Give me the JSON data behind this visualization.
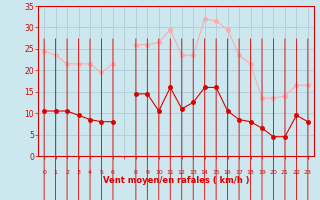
{
  "hours": [
    0,
    1,
    2,
    3,
    4,
    5,
    6,
    7,
    8,
    9,
    10,
    11,
    12,
    13,
    14,
    15,
    16,
    17,
    18,
    19,
    20,
    21,
    22,
    23
  ],
  "wind_mean": [
    10.5,
    10.5,
    10.5,
    9.5,
    8.5,
    8.0,
    8.0,
    null,
    14.5,
    14.5,
    10.5,
    16.0,
    11.0,
    12.5,
    16.0,
    16.0,
    10.5,
    8.5,
    8.0,
    6.5,
    4.5,
    4.5,
    9.5,
    8.0
  ],
  "wind_gust": [
    24.5,
    23.5,
    21.5,
    21.5,
    21.5,
    19.5,
    21.5,
    null,
    26.0,
    26.0,
    26.5,
    29.5,
    23.5,
    23.5,
    32.0,
    31.5,
    29.5,
    23.5,
    21.5,
    13.5,
    13.5,
    14.0,
    16.5,
    16.5
  ],
  "ylim": [
    0,
    35
  ],
  "yticks": [
    0,
    5,
    10,
    15,
    20,
    25,
    30,
    35
  ],
  "bg_color": "#cce8ee",
  "grid_color": "#aac8d4",
  "mean_color": "#dd0000",
  "gust_color": "#ffaaaa",
  "xlabel": "Vent moyen/en rafales ( km/h )",
  "xlabel_color": "#dd0000",
  "tick_color": "#dd0000",
  "marker_size": 2.5,
  "linewidth": 0.8
}
